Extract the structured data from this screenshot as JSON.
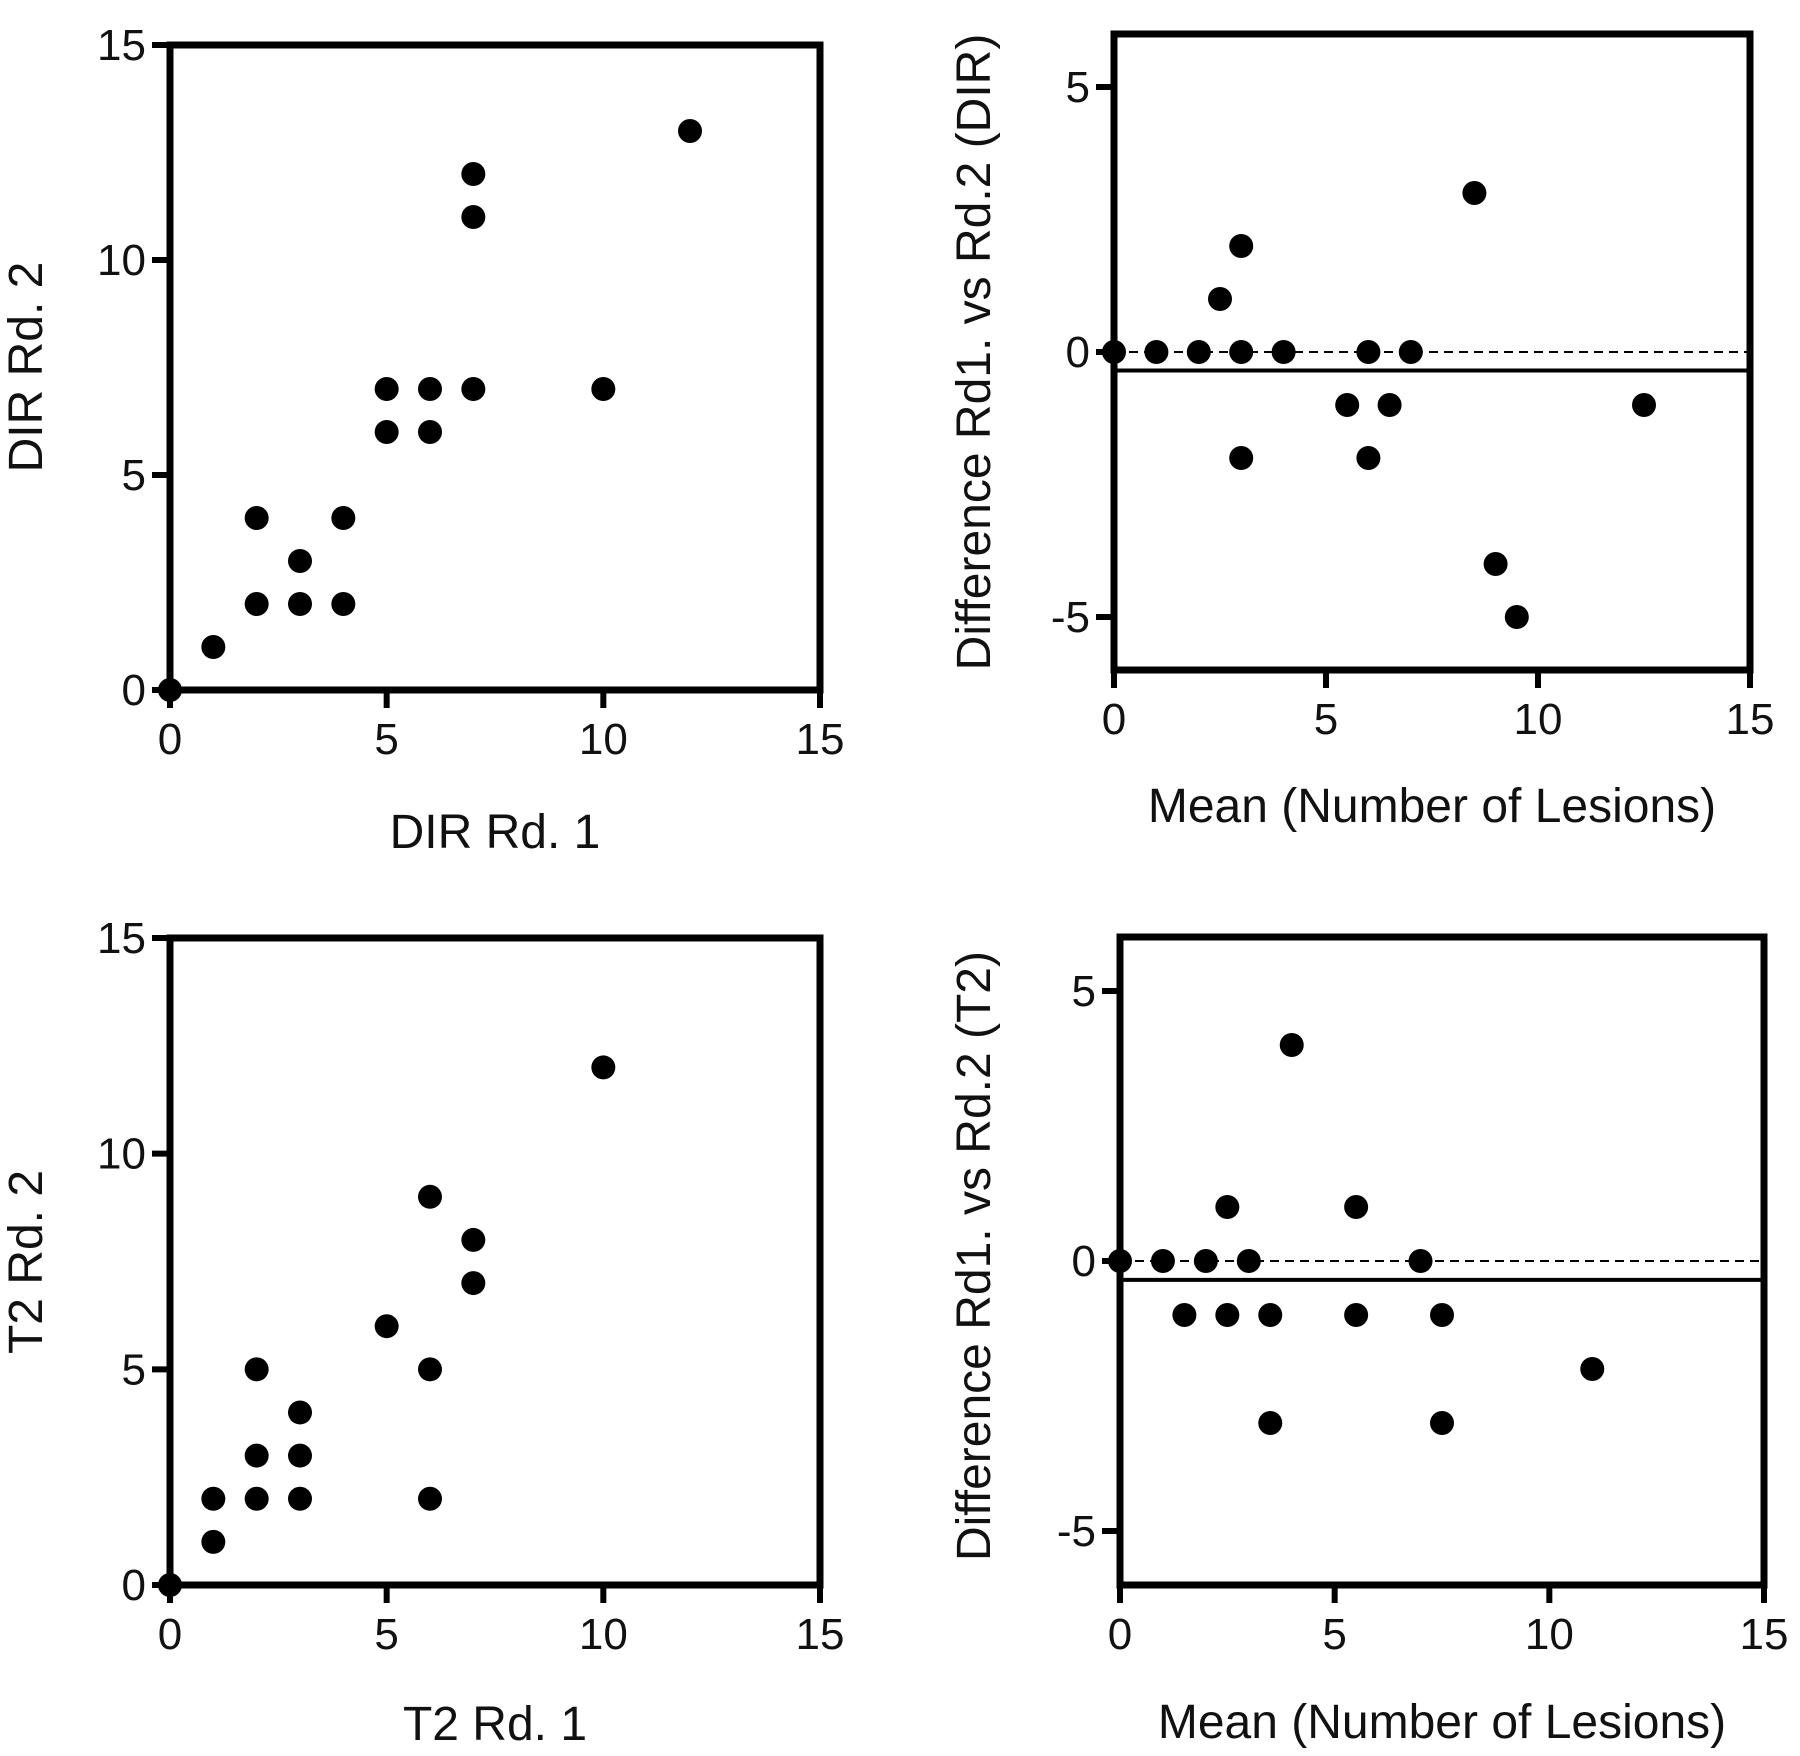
{
  "chart_data": [
    {
      "type": "scatter",
      "xlabel": "DIR Rd. 1",
      "ylabel": "DIR Rd. 2",
      "xlim": [
        0,
        15
      ],
      "ylim": [
        0,
        15
      ],
      "xticks": [
        "0",
        "5",
        "10",
        "15"
      ],
      "yticks": [
        "0",
        "5",
        "10",
        "15"
      ],
      "grid": false,
      "points": [
        {
          "x": 0,
          "y": 0
        },
        {
          "x": 1,
          "y": 1
        },
        {
          "x": 2,
          "y": 2
        },
        {
          "x": 2,
          "y": 4
        },
        {
          "x": 3,
          "y": 2
        },
        {
          "x": 3,
          "y": 3
        },
        {
          "x": 4,
          "y": 2
        },
        {
          "x": 4,
          "y": 4
        },
        {
          "x": 5,
          "y": 6
        },
        {
          "x": 5,
          "y": 7
        },
        {
          "x": 6,
          "y": 6
        },
        {
          "x": 6,
          "y": 7
        },
        {
          "x": 7,
          "y": 7
        },
        {
          "x": 7,
          "y": 11
        },
        {
          "x": 7,
          "y": 12
        },
        {
          "x": 10,
          "y": 7
        },
        {
          "x": 12,
          "y": 13
        }
      ]
    },
    {
      "type": "scatter",
      "xlabel": "Mean (Number of Lesions)",
      "ylabel": "Difference Rd1. vs Rd.2 (DIR)",
      "xlim": [
        0,
        15
      ],
      "ylim": [
        -6,
        6
      ],
      "xticks": [
        "0",
        "5",
        "10",
        "15"
      ],
      "yticks": [
        "-5",
        "0",
        "5"
      ],
      "grid": false,
      "zero_line": 0,
      "mean_difference": -0.35,
      "points": [
        {
          "x": 0,
          "y": 0
        },
        {
          "x": 1,
          "y": 0
        },
        {
          "x": 2,
          "y": 0
        },
        {
          "x": 2.5,
          "y": 1
        },
        {
          "x": 3,
          "y": 2
        },
        {
          "x": 3,
          "y": 0
        },
        {
          "x": 3,
          "y": -2
        },
        {
          "x": 4,
          "y": 0
        },
        {
          "x": 5.5,
          "y": -1
        },
        {
          "x": 6,
          "y": 0
        },
        {
          "x": 6,
          "y": -2
        },
        {
          "x": 6.5,
          "y": -1
        },
        {
          "x": 7,
          "y": 0
        },
        {
          "x": 8.5,
          "y": 3
        },
        {
          "x": 9,
          "y": -4
        },
        {
          "x": 9.5,
          "y": -5
        },
        {
          "x": 12.5,
          "y": -1
        }
      ]
    },
    {
      "type": "scatter",
      "xlabel": "T2 Rd. 1",
      "ylabel": "T2 Rd. 2",
      "xlim": [
        0,
        15
      ],
      "ylim": [
        0,
        15
      ],
      "xticks": [
        "0",
        "5",
        "10",
        "15"
      ],
      "yticks": [
        "0",
        "5",
        "10",
        "15"
      ],
      "grid": false,
      "points": [
        {
          "x": 0,
          "y": 0
        },
        {
          "x": 1,
          "y": 1
        },
        {
          "x": 1,
          "y": 2
        },
        {
          "x": 2,
          "y": 2
        },
        {
          "x": 2,
          "y": 3
        },
        {
          "x": 2,
          "y": 5
        },
        {
          "x": 3,
          "y": 2
        },
        {
          "x": 3,
          "y": 3
        },
        {
          "x": 3,
          "y": 4
        },
        {
          "x": 5,
          "y": 6
        },
        {
          "x": 6,
          "y": 2
        },
        {
          "x": 6,
          "y": 5
        },
        {
          "x": 6,
          "y": 9
        },
        {
          "x": 7,
          "y": 7
        },
        {
          "x": 7,
          "y": 8
        },
        {
          "x": 10,
          "y": 12
        }
      ]
    },
    {
      "type": "scatter",
      "xlabel": "Mean (Number of Lesions)",
      "ylabel": "Difference Rd1. vs Rd.2 (T2)",
      "xlim": [
        0,
        15
      ],
      "ylim": [
        -6,
        6
      ],
      "xticks": [
        "0",
        "5",
        "10",
        "15"
      ],
      "yticks": [
        "-5",
        "0",
        "5"
      ],
      "grid": false,
      "zero_line": 0,
      "mean_difference": -0.35,
      "points": [
        {
          "x": 0,
          "y": 0
        },
        {
          "x": 1,
          "y": 0
        },
        {
          "x": 1.5,
          "y": -1
        },
        {
          "x": 2,
          "y": 0
        },
        {
          "x": 2.5,
          "y": 1
        },
        {
          "x": 2.5,
          "y": -1
        },
        {
          "x": 3,
          "y": 0
        },
        {
          "x": 3.5,
          "y": -1
        },
        {
          "x": 3.5,
          "y": -3
        },
        {
          "x": 4,
          "y": 4
        },
        {
          "x": 5.5,
          "y": 1
        },
        {
          "x": 5.5,
          "y": -1
        },
        {
          "x": 7,
          "y": 0
        },
        {
          "x": 7.5,
          "y": -1
        },
        {
          "x": 7.5,
          "y": -3
        },
        {
          "x": 11,
          "y": -2
        }
      ]
    }
  ]
}
